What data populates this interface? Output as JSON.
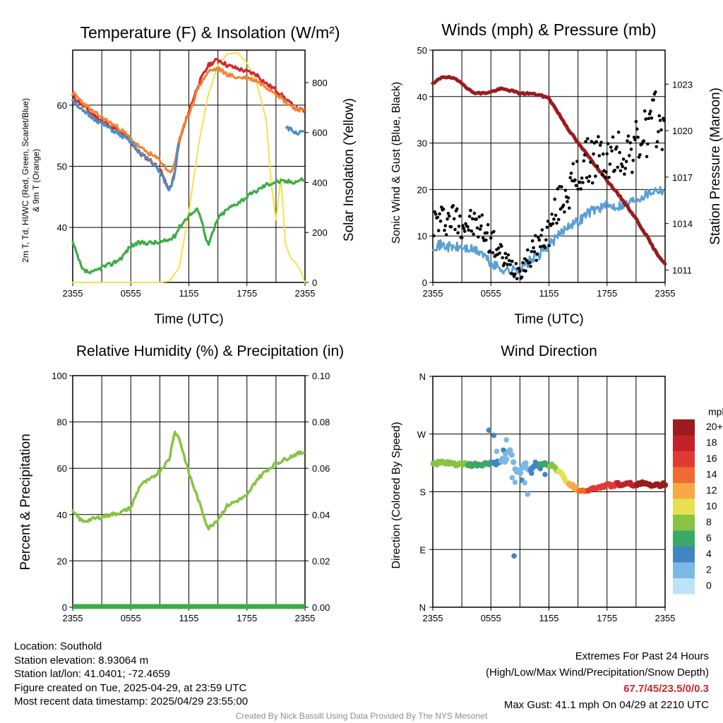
{
  "x_ticks": [
    "2355",
    "0555",
    "1155",
    "1755",
    "2355"
  ],
  "x_label": "Time (UTC)",
  "chart_data": [
    {
      "type": "line",
      "title": "Temperature (F) & Insolation (W/m²)",
      "xlabel": "Time (UTC)",
      "ylabel_lines": [
        "2m T, Td, HI/WC (Red, Green, Scarlet/Blue)",
        "& 9m T (Orange)"
      ],
      "ylabel_right": "Solar Insolation (Yellow)",
      "ylim": [
        31,
        69
      ],
      "yticks": [
        40,
        50,
        60
      ],
      "ylim_right": [
        0,
        930
      ],
      "yticks_right": [
        0,
        200,
        400,
        600,
        800
      ],
      "x_hours": [
        0,
        1,
        2,
        3,
        4,
        5,
        6,
        7,
        8,
        9,
        10,
        10.5,
        11,
        12,
        13,
        14,
        15,
        16,
        17,
        18,
        19,
        20,
        21,
        22,
        23,
        24
      ],
      "series": [
        {
          "name": "2m T",
          "color": "#d7262b",
          "values": [
            61.5,
            60,
            58.5,
            57.5,
            56.5,
            55.5,
            54,
            52,
            51,
            49.5,
            46,
            48.5,
            54,
            59,
            63.5,
            66.5,
            67.5,
            66.5,
            66,
            65.5,
            65,
            63.5,
            62.5,
            61,
            59.5,
            59
          ]
        },
        {
          "name": "9m T",
          "color": "#f08533",
          "values": [
            62,
            60.5,
            59,
            58,
            57,
            56,
            54.5,
            53,
            52,
            51,
            49,
            50,
            54.5,
            58.5,
            63,
            65.5,
            66,
            65,
            64.5,
            64.5,
            64,
            63,
            62,
            60.5,
            59.5,
            59
          ]
        },
        {
          "name": "Dew point",
          "color": "#3cad44",
          "values": [
            37.5,
            33,
            32.5,
            33.5,
            34,
            35,
            37,
            37.5,
            37.5,
            37.5,
            38,
            38.5,
            40,
            42,
            43,
            37,
            41.5,
            43,
            44,
            45,
            46,
            47,
            47.5,
            47.5,
            47.5,
            48
          ]
        },
        {
          "name": "Wind chill",
          "color": "#4a90c8",
          "values": [
            61,
            59,
            58,
            57,
            56,
            55,
            54,
            52,
            51,
            49,
            46,
            48.5,
            55,
            null,
            null,
            null,
            null,
            null,
            null,
            null,
            null,
            null,
            null,
            56.5,
            55.5,
            55.5
          ]
        }
      ],
      "insolation": {
        "name": "Solar Insolation",
        "color": "#f5e04c",
        "x_hours": [
          0,
          9,
          10,
          11,
          12,
          13,
          14,
          15,
          16,
          17,
          18,
          19,
          20,
          20.5,
          21,
          21.5,
          22,
          22.5,
          23,
          23.5,
          24
        ],
        "values": [
          0,
          0,
          5,
          60,
          280,
          550,
          750,
          870,
          915,
          920,
          880,
          800,
          650,
          400,
          250,
          420,
          150,
          100,
          80,
          50,
          0
        ]
      }
    },
    {
      "type": "line",
      "title": "Winds (mph) & Pressure (mb)",
      "xlabel": "Time (UTC)",
      "ylabel": "Sonic Wind & Gust (Blue, Black)",
      "ylabel_right": "Station Pressure (Maroon)",
      "ylim": [
        0,
        50
      ],
      "yticks": [
        0,
        10,
        20,
        30,
        40,
        50
      ],
      "ylim_right": [
        1010.2,
        1025.2
      ],
      "yticks_right": [
        1011,
        1014,
        1017,
        1020,
        1023
      ],
      "x_hours": [
        0,
        1,
        2,
        3,
        4,
        5,
        6,
        7,
        8,
        9,
        10,
        11,
        12,
        13,
        14,
        15,
        16,
        17,
        18,
        19,
        20,
        21,
        22,
        23,
        24
      ],
      "series": [
        {
          "name": "Sonic Wind",
          "color": "#5a9fd4",
          "values": [
            8,
            8,
            7.5,
            7.5,
            7,
            6.5,
            4,
            3,
            2.5,
            3,
            4.5,
            6,
            8,
            10,
            12.5,
            13,
            15,
            16,
            16.5,
            16.5,
            17,
            18,
            19,
            20,
            20
          ]
        },
        {
          "name": "Pressure",
          "color": "#9b1b1e",
          "values": [
            1023,
            1023.5,
            1023.4,
            1023.1,
            1022.5,
            1022.4,
            1022.5,
            1022.7,
            1022.6,
            1022.4,
            1022.4,
            1022.3,
            1022.1,
            1021.1,
            1020.1,
            1019.2,
            1018.4,
            1017.6,
            1016.8,
            1016.0,
            1015.2,
            1014.3,
            1013.3,
            1012.2,
            1011.4
          ]
        }
      ],
      "gust": {
        "name": "Gust",
        "color": "#000000",
        "x_hours": [
          0,
          1,
          2,
          3,
          4,
          5,
          6,
          7,
          8,
          9,
          10,
          11,
          12,
          13,
          14,
          15,
          16,
          17,
          18,
          19,
          20,
          21,
          22,
          23,
          24
        ],
        "values": [
          13,
          13.5,
          14,
          13,
          12.5,
          12,
          9,
          6,
          3.5,
          3,
          5.5,
          8.5,
          11,
          17,
          20,
          22.5,
          26,
          27,
          26,
          27.5,
          28,
          29.5,
          32,
          35,
          33
        ]
      }
    },
    {
      "type": "line",
      "title": "Relative Humidity (%) & Precipitation (in)",
      "ylabel": "Percent & Precipitation",
      "ylim": [
        0,
        100
      ],
      "yticks": [
        0,
        20,
        40,
        60,
        80,
        100
      ],
      "ylim_right": [
        0,
        0.1
      ],
      "yticks_right": [
        "0.00",
        "0.02",
        "0.04",
        "0.06",
        "0.08",
        "0.10"
      ],
      "x_hours": [
        0,
        1,
        2,
        3,
        4,
        5,
        6,
        7,
        8,
        9,
        10,
        10.5,
        11,
        12,
        13,
        14,
        15,
        16,
        17,
        18,
        19,
        20,
        21,
        22,
        23,
        24
      ],
      "series": [
        {
          "name": "Relative Humidity",
          "color": "#86c441",
          "values": [
            41,
            37,
            38,
            39,
            40,
            41,
            43,
            53,
            55,
            59,
            64,
            76,
            73,
            58,
            46,
            34,
            38,
            44,
            46,
            48,
            55,
            59,
            62,
            64,
            66,
            67
          ]
        },
        {
          "name": "Precipitation",
          "color": "#3cad44",
          "values": [
            0,
            0,
            0,
            0,
            0,
            0,
            0,
            0,
            0,
            0,
            0,
            0,
            0,
            0,
            0,
            0,
            0,
            0,
            0,
            0,
            0,
            0,
            0,
            0,
            0,
            0
          ]
        }
      ]
    },
    {
      "type": "scatter",
      "title": "Wind Direction",
      "ylabel": "Direction (Colored By Speed)",
      "yticks": [
        "N",
        "E",
        "S",
        "W",
        "N"
      ],
      "ylim_degrees": [
        0,
        360
      ],
      "x_hours": [
        0,
        0.5,
        1,
        1.5,
        2,
        2.5,
        3,
        3.5,
        4,
        4.5,
        5,
        5.5,
        6,
        6.5,
        7,
        7.5,
        8,
        8.5,
        9,
        9.5,
        10,
        10.5,
        11,
        11.5,
        12,
        12.5,
        13,
        13.5,
        14,
        14.5,
        15,
        15.5,
        16,
        16.5,
        17,
        17.5,
        18,
        18.5,
        19,
        19.5,
        20,
        20.5,
        21,
        21.5,
        22,
        22.5,
        23,
        23.5,
        24
      ],
      "direction_degrees": [
        223,
        225,
        225,
        224,
        224,
        223,
        223,
        222,
        221,
        222,
        222,
        223,
        225,
        224,
        226,
        228,
        248,
        215,
        210,
        225,
        210,
        220,
        222,
        224,
        222,
        220,
        212,
        203,
        194,
        188,
        183,
        182,
        183,
        184,
        186,
        188,
        190,
        190,
        192,
        191,
        191,
        192,
        191,
        192,
        193,
        191,
        192,
        191,
        191
      ],
      "speed_mph": [
        8,
        8,
        7.5,
        7.5,
        7,
        7,
        7,
        7,
        6.5,
        6.5,
        6,
        6,
        5,
        4,
        3,
        2.5,
        2,
        1.5,
        1.5,
        2,
        3,
        4,
        5,
        6,
        7,
        8,
        9,
        10,
        11,
        12,
        13,
        14,
        15,
        15.5,
        16,
        16,
        16.5,
        16.5,
        17,
        17,
        18,
        18,
        19,
        19,
        20,
        20,
        21,
        21,
        20
      ],
      "extra_points": {
        "x_hours": [
          5.8,
          6.3,
          6.6,
          7.3,
          7.6,
          8.5,
          9.2,
          9.8,
          10.6,
          11.1,
          11.6,
          7.2,
          7.5,
          8.2,
          9.5,
          10.2,
          8.4
        ],
        "direction_degrees": [
          276,
          268,
          243,
          245,
          261,
          195,
          198,
          176,
          226,
          216,
          207,
          232,
          239,
          202,
          194,
          209,
          80
        ],
        "speed_mph": [
          3,
          3,
          2,
          3,
          1,
          2,
          3,
          2,
          3,
          3,
          4,
          2,
          1,
          2,
          2,
          3,
          3
        ]
      },
      "colorbar": {
        "unit": "mph",
        "levels": [
          "20+",
          "18",
          "16",
          "14",
          "12",
          "10",
          "8",
          "6",
          "4",
          "2",
          "0"
        ],
        "colors": [
          "#9b1b1e",
          "#c0232a",
          "#e03a34",
          "#f06a32",
          "#f8a844",
          "#e6e052",
          "#86c441",
          "#3aa866",
          "#3f86c3",
          "#7cb8e3",
          "#bde3f6"
        ]
      }
    }
  ],
  "footer": {
    "location": "Location: Southold",
    "elevation": "Station elevation: 8.93064 m",
    "latlon": "Station lat/lon: 41.0401; -72.4659",
    "created": "Figure created on Tue, 2025-04-29, at 23:59 UTC",
    "recent": "Most recent data timestamp: 2025/04/29 23:55:00",
    "extremes_title": "Extremes For Past 24 Hours",
    "extremes_sub": "(High/Low/Max Wind/Precipitation/Snow Depth)",
    "extremes_values": "67.7/45/23.5/0/0.3",
    "max_gust": "Max Gust: 41.1 mph On 04/29 at 2210 UTC",
    "credit": "Created By Nick Bassill Using Data Provided By The NYS Mesonet"
  }
}
